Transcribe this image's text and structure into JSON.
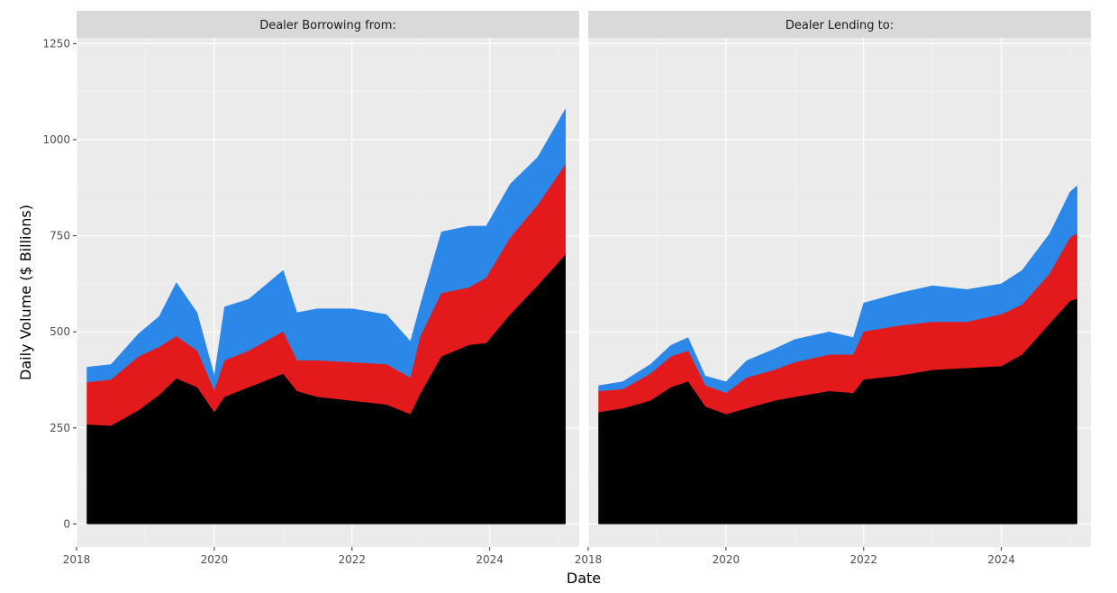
{
  "chart_data": {
    "type": "area",
    "stacked": true,
    "xlabel": "Date",
    "ylabel": "Daily Volume ($ Billions)",
    "xlim": [
      2018.0,
      2025.3
    ],
    "ylim": [
      -60,
      1265
    ],
    "x_ticks": [
      2018,
      2020,
      2022,
      2024
    ],
    "y_ticks": [
      0,
      250,
      500,
      750,
      1000,
      1250
    ],
    "grid": true,
    "legend": "none",
    "colors": [
      "#000000",
      "#e31a1c",
      "#2b87e8"
    ],
    "panels": [
      {
        "title": "Dealer Borrowing from:",
        "x": [
          2018.15,
          2018.5,
          2018.9,
          2019.2,
          2019.45,
          2019.75,
          2020.0,
          2020.15,
          2020.5,
          2021.0,
          2021.2,
          2021.5,
          2022.0,
          2022.5,
          2022.85,
          2023.0,
          2023.3,
          2023.7,
          2023.95,
          2024.3,
          2024.7,
          2025.1
        ],
        "series": [
          {
            "values": [
              258,
              255,
              295,
              335,
              378,
              355,
              290,
              330,
              355,
              390,
              345,
              330,
              320,
              310,
              285,
              340,
              435,
              465,
              470,
              545,
              620,
              700
            ]
          },
          {
            "values": [
              110,
              120,
              140,
              125,
              110,
              95,
              55,
              95,
              95,
              110,
              80,
              95,
              100,
              105,
              95,
              150,
              165,
              150,
              170,
              200,
              210,
              235
            ]
          },
          {
            "values": [
              40,
              40,
              60,
              80,
              140,
              100,
              40,
              140,
              135,
              160,
              125,
              135,
              140,
              130,
              95,
              85,
              160,
              160,
              135,
              140,
              125,
              145
            ]
          }
        ]
      },
      {
        "title": "Dealer Lending to:",
        "x": [
          2018.15,
          2018.5,
          2018.9,
          2019.2,
          2019.45,
          2019.7,
          2020.0,
          2020.3,
          2020.7,
          2021.0,
          2021.5,
          2021.85,
          2022.0,
          2022.5,
          2023.0,
          2023.5,
          2024.0,
          2024.3,
          2024.7,
          2025.0,
          2025.1
        ],
        "series": [
          {
            "values": [
              290,
              300,
              320,
              355,
              370,
              305,
              285,
              300,
              320,
              330,
              345,
              340,
              375,
              385,
              400,
              405,
              410,
              440,
              520,
              580,
              585
            ]
          },
          {
            "values": [
              55,
              50,
              70,
              80,
              80,
              55,
              55,
              80,
              80,
              90,
              95,
              100,
              125,
              130,
              125,
              120,
              135,
              130,
              130,
              165,
              170
            ]
          },
          {
            "values": [
              15,
              20,
              25,
              30,
              35,
              25,
              30,
              45,
              55,
              60,
              60,
              45,
              75,
              85,
              95,
              85,
              80,
              90,
              105,
              120,
              125
            ]
          }
        ]
      }
    ]
  }
}
